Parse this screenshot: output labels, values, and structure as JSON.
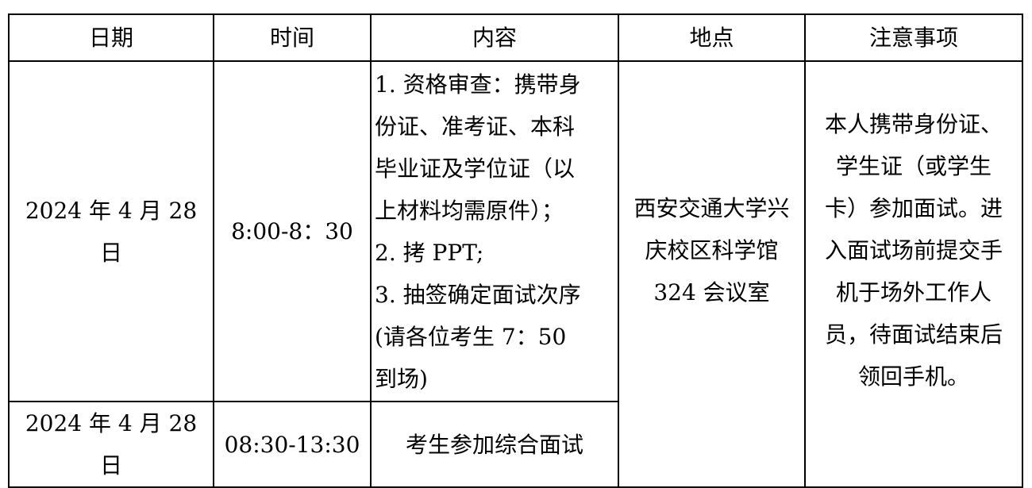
{
  "table": {
    "headers": [
      "日期",
      "时间",
      "内容",
      "地点",
      "注意事项"
    ],
    "rows": [
      {
        "date": "2024 年 4 月 28 日",
        "time": "8:00-8：30",
        "content_lines": [
          "1. 资格审查：携带身",
          "份证、准考证、本科",
          "毕业证及学位证（以",
          "上材料均需原件）；",
          "2. 拷 PPT;",
          "3. 抽签确定面试次序",
          "(请各位考生 7：50",
          "到场)"
        ]
      },
      {
        "date": "2024 年 4 月 28 日",
        "time": "08:30-13:30",
        "content_lines": [
          "考生参加综合面试"
        ]
      }
    ],
    "location_lines": [
      "西安交通大学兴",
      "庆校区科学馆",
      "324 会议室"
    ],
    "notes_lines": [
      "本人携带身份证、",
      "学生证（或学生",
      "卡）参加面试。进",
      "入面试场前提交手",
      "机于场外工作人",
      "员，待面试结束后",
      "领回手机。"
    ]
  }
}
